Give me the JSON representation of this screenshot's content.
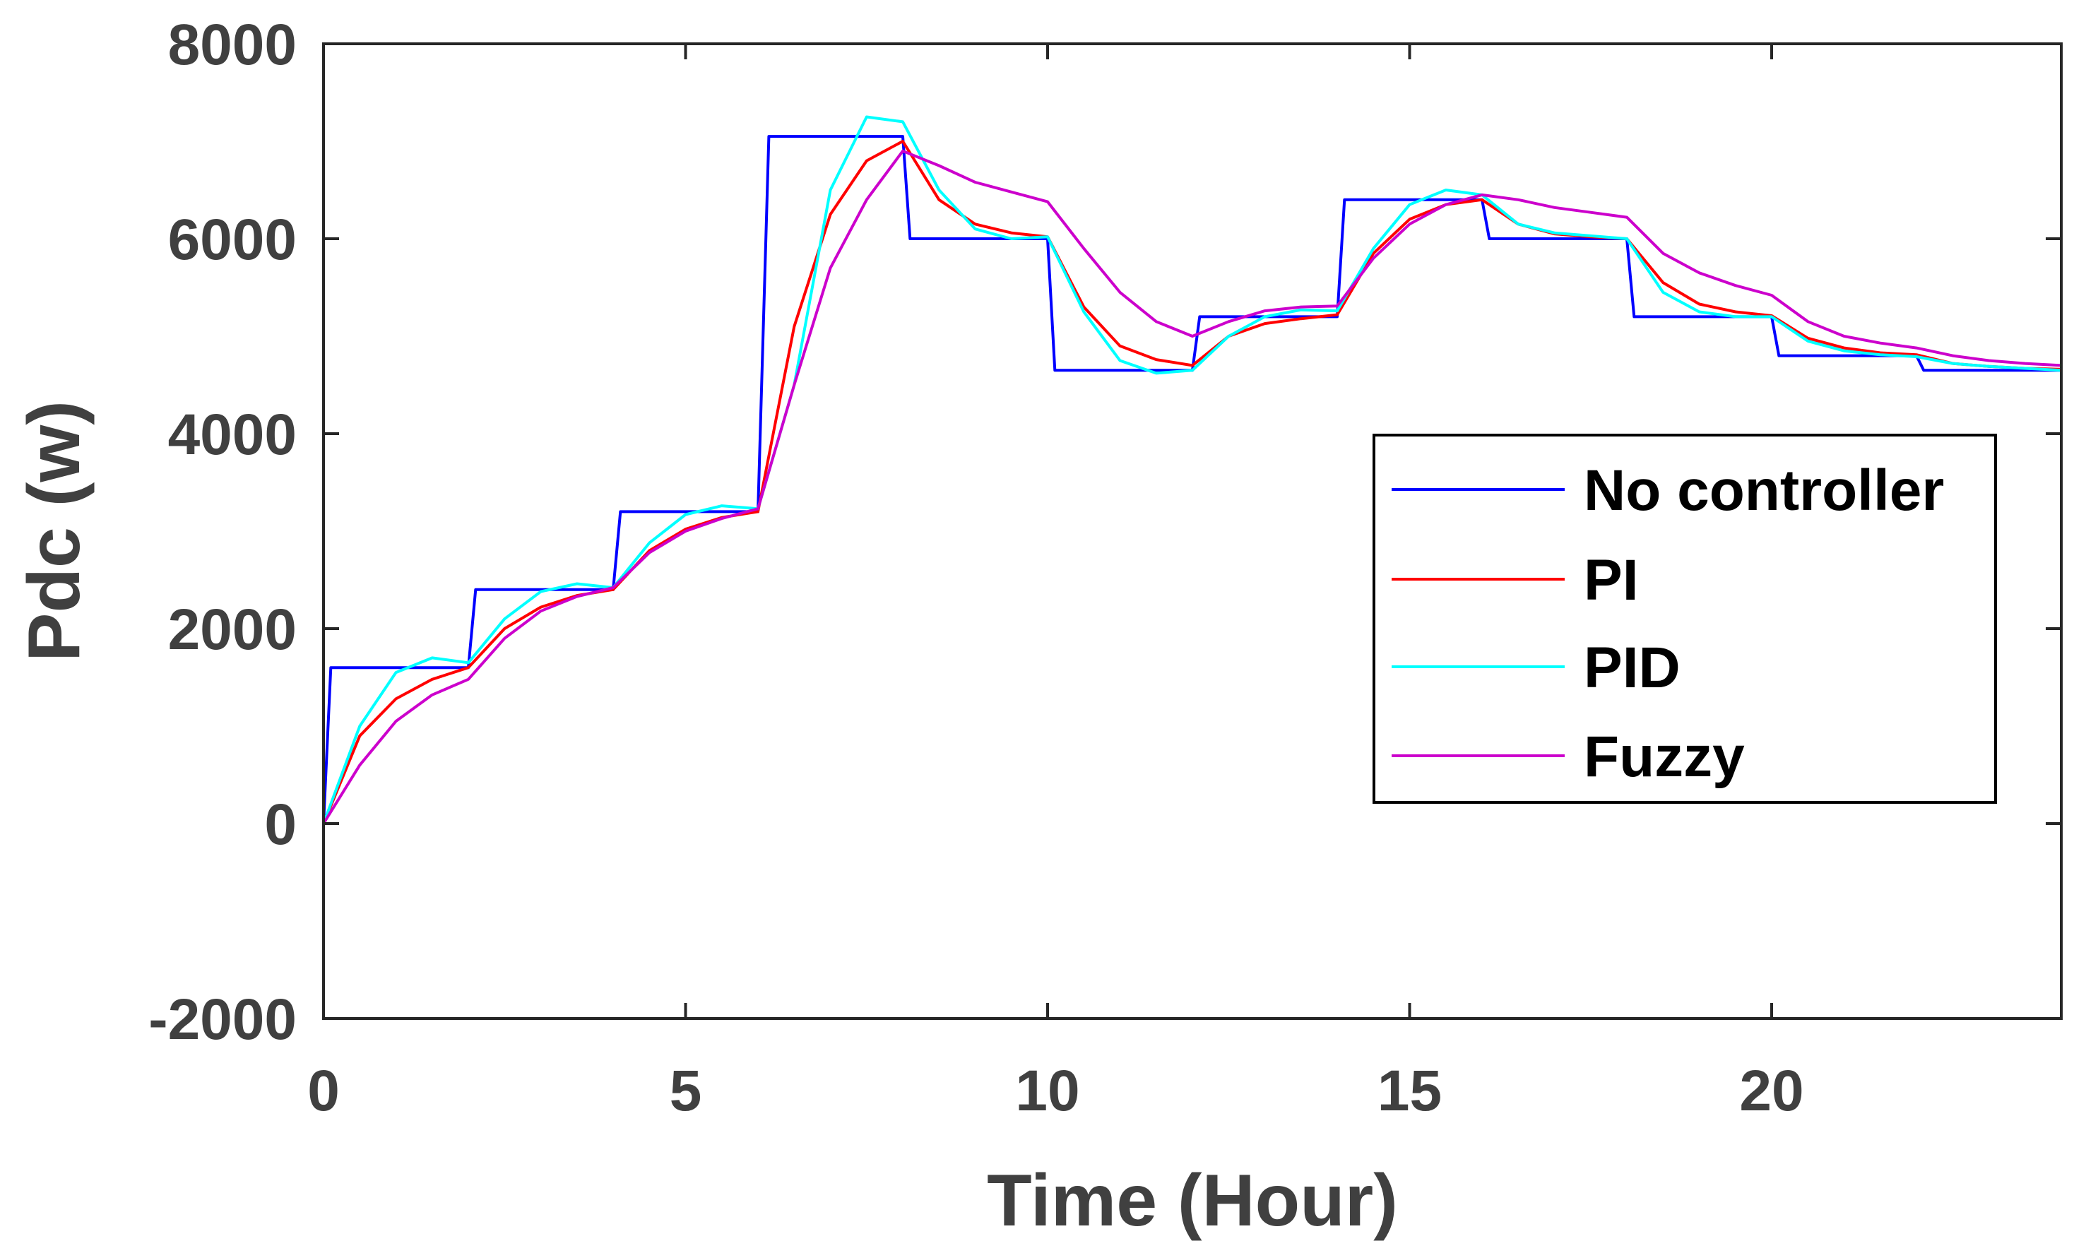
{
  "chart_data": {
    "type": "line",
    "title": "",
    "xlabel": "Time (Hour)",
    "ylabel": "Pdc (w)",
    "xlim": [
      0,
      24
    ],
    "ylim": [
      -2000,
      8000
    ],
    "xticks": [
      0,
      5,
      10,
      15,
      20
    ],
    "yticks": [
      -2000,
      0,
      2000,
      4000,
      6000,
      8000
    ],
    "xtick_labels": [
      "0",
      "5",
      "10",
      "15",
      "20"
    ],
    "ytick_labels": [
      "-2000",
      "0",
      "2000",
      "4000",
      "6000",
      "8000"
    ],
    "grid": false,
    "legend_position": "right",
    "series": [
      {
        "name": "No controller",
        "color": "#0000ff",
        "x": [
          0,
          0.1,
          2,
          2.1,
          4,
          4.1,
          6,
          6.15,
          8,
          8.1,
          10,
          10.1,
          12,
          12.1,
          14,
          14.1,
          16,
          16.1,
          18,
          18.1,
          20,
          20.1,
          22,
          22.1,
          24
        ],
        "y": [
          0,
          1600,
          1600,
          2400,
          2400,
          3200,
          3200,
          7050,
          7050,
          6000,
          6000,
          4650,
          4650,
          5200,
          5200,
          6400,
          6400,
          6000,
          6000,
          5200,
          5200,
          4800,
          4800,
          4650,
          4650
        ]
      },
      {
        "name": "PI",
        "color": "#ff0000",
        "x": [
          0,
          0.5,
          1,
          1.5,
          2,
          2.5,
          3,
          3.5,
          4,
          4.5,
          5,
          5.5,
          6,
          6.5,
          7,
          7.5,
          8,
          8.5,
          9,
          9.5,
          10,
          10.5,
          11,
          11.5,
          12,
          12.5,
          13,
          13.5,
          14,
          14.5,
          15,
          15.5,
          16,
          16.5,
          17,
          17.5,
          18,
          18.5,
          19,
          19.5,
          20,
          20.5,
          21,
          21.5,
          22,
          22.5,
          23,
          23.5,
          24
        ],
        "y": [
          0,
          900,
          1280,
          1480,
          1600,
          2000,
          2220,
          2340,
          2400,
          2800,
          3020,
          3140,
          3200,
          5100,
          6250,
          6800,
          7000,
          6400,
          6150,
          6060,
          6020,
          5300,
          4900,
          4760,
          4700,
          5000,
          5130,
          5180,
          5220,
          5850,
          6200,
          6350,
          6400,
          6150,
          6050,
          6020,
          6000,
          5550,
          5330,
          5250,
          5210,
          4980,
          4880,
          4830,
          4810,
          4720,
          4690,
          4670,
          4660
        ]
      },
      {
        "name": "PID",
        "color": "#00ffff",
        "x": [
          0,
          0.5,
          1,
          1.5,
          2,
          2.5,
          3,
          3.5,
          4,
          4.5,
          5,
          5.5,
          6,
          6.5,
          7,
          7.5,
          8,
          8.5,
          9,
          9.5,
          10,
          10.5,
          11,
          11.5,
          12,
          12.5,
          13,
          13.5,
          14,
          14.5,
          15,
          15.5,
          16,
          16.5,
          17,
          17.5,
          18,
          18.5,
          19,
          19.5,
          20,
          20.5,
          21,
          21.5,
          22,
          22.5,
          23,
          23.5,
          24
        ],
        "y": [
          0,
          1000,
          1550,
          1700,
          1650,
          2100,
          2380,
          2460,
          2420,
          2880,
          3170,
          3260,
          3230,
          4500,
          6500,
          7250,
          7200,
          6500,
          6100,
          6000,
          6020,
          5250,
          4750,
          4620,
          4650,
          5000,
          5200,
          5270,
          5260,
          5900,
          6350,
          6500,
          6450,
          6150,
          6060,
          6030,
          6000,
          5450,
          5250,
          5200,
          5200,
          4950,
          4850,
          4810,
          4790,
          4720,
          4690,
          4670,
          4650
        ]
      },
      {
        "name": "Fuzzy",
        "color": "#cc00cc",
        "x": [
          0,
          0.5,
          1,
          1.5,
          2,
          2.5,
          3,
          3.5,
          4,
          4.5,
          5,
          5.5,
          6,
          6.5,
          7,
          7.5,
          8,
          8.5,
          9,
          9.5,
          10,
          10.5,
          11,
          11.5,
          12,
          12.5,
          13,
          13.5,
          14,
          14.5,
          15,
          15.5,
          16,
          16.5,
          17,
          17.5,
          18,
          18.5,
          19,
          19.5,
          20,
          20.5,
          21,
          21.5,
          22,
          22.5,
          23,
          23.5,
          24
        ],
        "y": [
          0,
          600,
          1050,
          1320,
          1480,
          1900,
          2180,
          2330,
          2420,
          2780,
          3000,
          3130,
          3230,
          4500,
          5700,
          6400,
          6900,
          6750,
          6580,
          6480,
          6380,
          5900,
          5450,
          5150,
          5000,
          5150,
          5260,
          5300,
          5310,
          5800,
          6150,
          6350,
          6450,
          6400,
          6320,
          6270,
          6220,
          5850,
          5650,
          5520,
          5420,
          5150,
          5000,
          4930,
          4880,
          4800,
          4750,
          4720,
          4700
        ]
      }
    ]
  }
}
